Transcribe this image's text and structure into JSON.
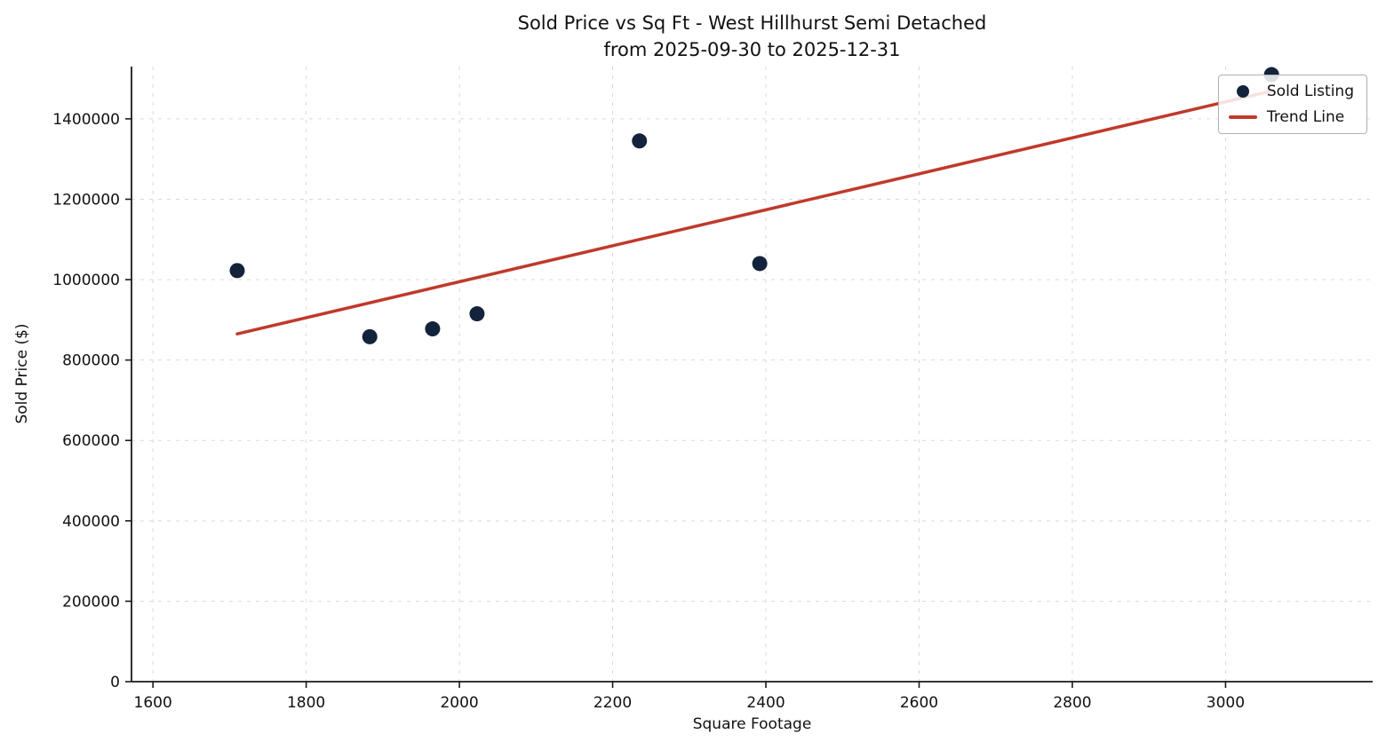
{
  "chart_data": {
    "type": "scatter",
    "title": "Sold Price vs Sq Ft - West Hillhurst Semi Detached",
    "subtitle": "from 2025-09-30 to 2025-12-31",
    "xlabel": "Square Footage",
    "ylabel": "Sold Price ($)",
    "xlim": [
      1572,
      3192
    ],
    "ylim": [
      0,
      1530000
    ],
    "xticks": [
      1600,
      1800,
      2000,
      2200,
      2400,
      2600,
      2800,
      3000
    ],
    "yticks": [
      0,
      200000,
      400000,
      600000,
      800000,
      1000000,
      1200000,
      1400000
    ],
    "grid": "dashed",
    "legend_position": "upper right",
    "series": [
      {
        "name": "Sold Listing",
        "type": "scatter",
        "points": [
          {
            "x": 1710,
            "y": 1022500
          },
          {
            "x": 1883,
            "y": 858000
          },
          {
            "x": 1965,
            "y": 877500
          },
          {
            "x": 2023,
            "y": 915000
          },
          {
            "x": 2235,
            "y": 1345000
          },
          {
            "x": 2392,
            "y": 1040000
          },
          {
            "x": 3060,
            "y": 1510000
          }
        ]
      },
      {
        "name": "Trend Line",
        "type": "line",
        "points": [
          {
            "x": 1710,
            "y": 865000
          },
          {
            "x": 3062,
            "y": 1470000
          }
        ]
      }
    ],
    "colors": {
      "marker": "#13233c",
      "trend": "#c0392b",
      "grid": "#d9d9d9",
      "axis": "#1a1a1a"
    }
  }
}
